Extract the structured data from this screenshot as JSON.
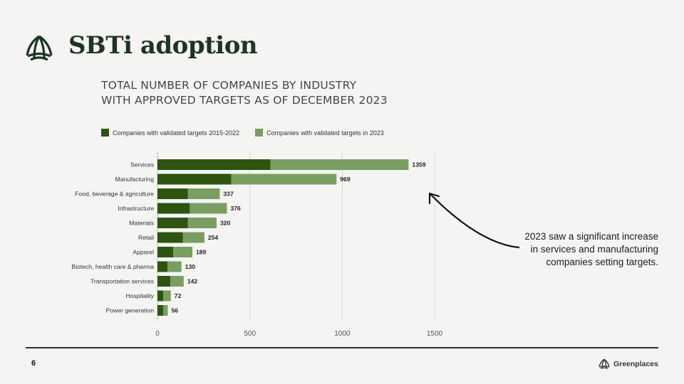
{
  "header": {
    "title": "SBTi adoption"
  },
  "chart_title": {
    "line1": "TOTAL NUMBER OF COMPANIES BY INDUSTRY",
    "line2": "WITH APPROVED TARGETS AS OF DECEMBER 2023"
  },
  "colors": {
    "dark": "#2e5410",
    "light": "#7a9e62",
    "grid": "#d8d8d8"
  },
  "chart_data": {
    "type": "bar",
    "orientation": "horizontal",
    "stacked": true,
    "categories": [
      "Services",
      "Manufacturing",
      "Food, beverage & agriculture",
      "Infrastructure",
      "Materials",
      "Retail",
      "Apparel",
      "Biotech, health care & pharma",
      "Transportation services",
      "Hospitality",
      "Power generation"
    ],
    "series": [
      {
        "name": "Companies with validated targets 2015-2022",
        "values": [
          612,
          400,
          165,
          175,
          165,
          138,
          85,
          55,
          70,
          32,
          32
        ]
      },
      {
        "name": "Companies with validated targets in 2023",
        "values": [
          747,
          569,
          172,
          201,
          155,
          116,
          104,
          75,
          72,
          40,
          24
        ]
      }
    ],
    "totals": [
      1359,
      969,
      337,
      376,
      320,
      254,
      189,
      130,
      142,
      72,
      56
    ],
    "xlim": [
      0,
      1500
    ],
    "xticks": [
      0,
      500,
      1000,
      1500
    ],
    "grid": true,
    "legend_position": "top-left"
  },
  "annotation": {
    "line1": "2023 saw a significant increase",
    "line2": "in services and manufacturing",
    "line3": "companies setting targets."
  },
  "footer": {
    "page_number": "6",
    "brand": "Greenplaces"
  }
}
